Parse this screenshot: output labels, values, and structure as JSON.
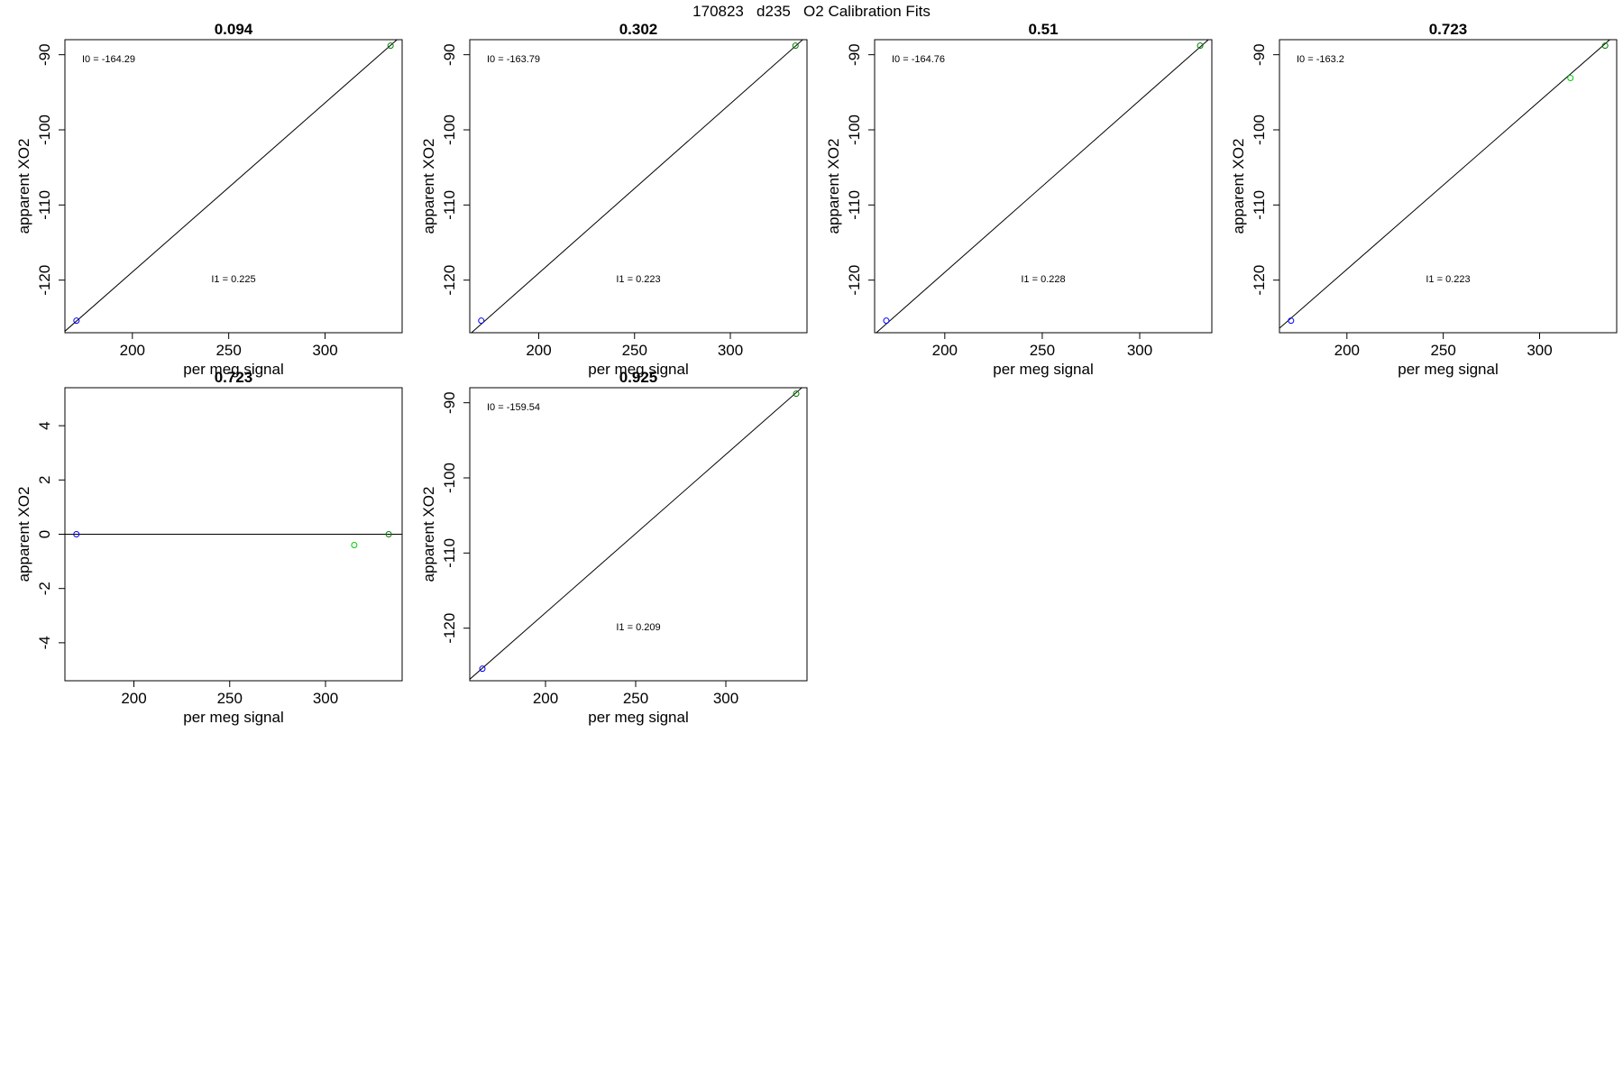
{
  "figure_title": "170823   d235   O2 Calibration Fits",
  "colors": {
    "frame": "#000000",
    "fit_line": "#000000",
    "low_point": "#0000ff",
    "high_point": "#008000",
    "mid_point": "#00cc00"
  },
  "chart_data": [
    {
      "type": "scatter",
      "title": "0.094",
      "xlabel": "per meg signal",
      "ylabel": "apparent XO2",
      "xlim": [
        165,
        340
      ],
      "ylim": [
        -127,
        -88
      ],
      "xticks": [
        200,
        250,
        300
      ],
      "yticks": [
        -120,
        -110,
        -100,
        -90
      ],
      "points": [
        {
          "x": 171,
          "y": -125.4,
          "color": "#0000ff"
        },
        {
          "x": 334,
          "y": -88.8,
          "color": "#008000"
        }
      ],
      "fit_line": [
        [
          165,
          -126.8
        ],
        [
          340,
          -87.4
        ]
      ],
      "annotations": [
        "I0 =  -164.29",
        "I1 =  0.225"
      ]
    },
    {
      "type": "scatter",
      "title": "0.302",
      "xlabel": "per meg signal",
      "ylabel": "apparent XO2",
      "xlim": [
        164,
        340
      ],
      "ylim": [
        -127,
        -88
      ],
      "xticks": [
        200,
        250,
        300
      ],
      "yticks": [
        -120,
        -110,
        -100,
        -90
      ],
      "points": [
        {
          "x": 170,
          "y": -125.4,
          "color": "#0000ff"
        },
        {
          "x": 334,
          "y": -88.8,
          "color": "#008000"
        }
      ],
      "fit_line": [
        [
          164,
          -127.2
        ],
        [
          340,
          -87.5
        ]
      ],
      "annotations": [
        "I0 =  -163.79",
        "I1 =  0.223"
      ]
    },
    {
      "type": "scatter",
      "title": "0.51",
      "xlabel": "per meg signal",
      "ylabel": "apparent XO2",
      "xlim": [
        164,
        337
      ],
      "ylim": [
        -127,
        -88
      ],
      "xticks": [
        200,
        250,
        300
      ],
      "yticks": [
        -120,
        -110,
        -100,
        -90
      ],
      "points": [
        {
          "x": 170,
          "y": -125.4,
          "color": "#0000ff"
        },
        {
          "x": 331,
          "y": -88.8,
          "color": "#008000"
        }
      ],
      "fit_line": [
        [
          164,
          -127.2
        ],
        [
          337,
          -87.6
        ]
      ],
      "annotations": [
        "I0 =  -164.76",
        "I1 =  0.228"
      ]
    },
    {
      "type": "scatter",
      "title": "0.723",
      "xlabel": "per meg signal",
      "ylabel": "apparent XO2",
      "xlim": [
        165,
        340
      ],
      "ylim": [
        -127,
        -88
      ],
      "xticks": [
        200,
        250,
        300
      ],
      "yticks": [
        -120,
        -110,
        -100,
        -90
      ],
      "points": [
        {
          "x": 171,
          "y": -125.4,
          "color": "#0000ff"
        },
        {
          "x": 316,
          "y": -93.1,
          "color": "#00cc00"
        },
        {
          "x": 334,
          "y": -88.8,
          "color": "#008000"
        }
      ],
      "fit_line": [
        [
          165,
          -126.4
        ],
        [
          340,
          -87.2
        ]
      ],
      "annotations": [
        "I0 =  -163.2",
        "I1 =  0.223"
      ]
    },
    {
      "type": "scatter",
      "title": "0.723",
      "xlabel": "per meg signal",
      "ylabel": "apparent XO2",
      "xlim": [
        164,
        340
      ],
      "ylim": [
        -5.4,
        5.4
      ],
      "xticks": [
        200,
        250,
        300
      ],
      "yticks": [
        -4,
        -2,
        0,
        2,
        4
      ],
      "points": [
        {
          "x": 170,
          "y": 0,
          "color": "#0000ff"
        },
        {
          "x": 315,
          "y": -0.4,
          "color": "#00cc00"
        },
        {
          "x": 333,
          "y": 0,
          "color": "#008000"
        }
      ],
      "fit_line": [
        [
          164,
          0
        ],
        [
          340,
          0
        ]
      ],
      "annotations": []
    },
    {
      "type": "scatter",
      "title": "0.925",
      "xlabel": "per meg signal",
      "ylabel": "apparent XO2",
      "xlim": [
        158,
        345
      ],
      "ylim": [
        -127,
        -88
      ],
      "xticks": [
        200,
        250,
        300
      ],
      "yticks": [
        -120,
        -110,
        -100,
        -90
      ],
      "points": [
        {
          "x": 165,
          "y": -125.4,
          "color": "#0000ff"
        },
        {
          "x": 339,
          "y": -88.8,
          "color": "#008000"
        }
      ],
      "fit_line": [
        [
          158,
          -126.8
        ],
        [
          345,
          -87.4
        ]
      ],
      "annotations": [
        "I0 =  -159.54",
        "I1 =  0.209"
      ]
    }
  ]
}
